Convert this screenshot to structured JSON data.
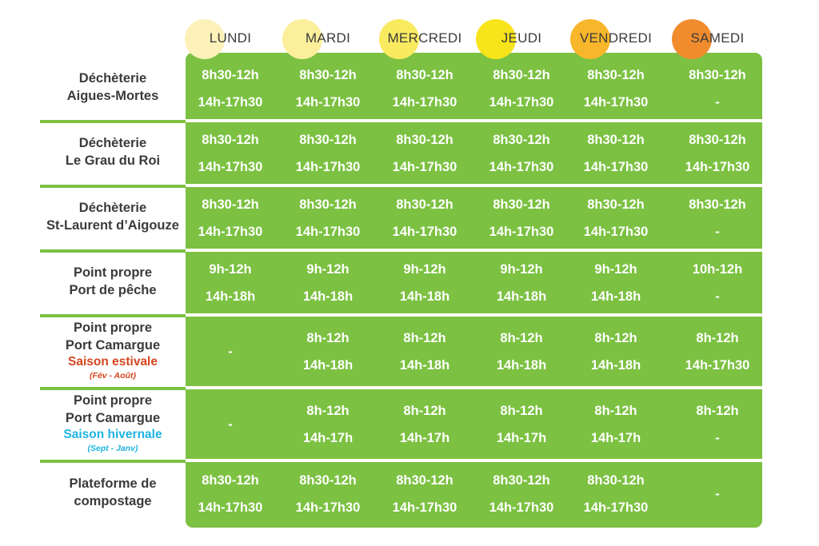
{
  "days": [
    {
      "label": "LUNDI",
      "color": "#fbf1b9"
    },
    {
      "label": "MARDI",
      "color": "#fbef9c"
    },
    {
      "label": "MERCREDI",
      "color": "#f9ea60"
    },
    {
      "label": "JEUDI",
      "color": "#f7e41a"
    },
    {
      "label": "VENDREDI",
      "color": "#f8b62a"
    },
    {
      "label": "SAMEDI",
      "color": "#f08c2e"
    }
  ],
  "colors": {
    "green": "#7cc142",
    "estivale": "#d4451f",
    "hivernale": "#1eb4e0",
    "text": "#3b3b3b"
  },
  "sites": [
    {
      "name": [
        "Déchèterie",
        "Aigues-Mortes"
      ],
      "hours": [
        [
          "8h30-12h",
          "14h-17h30"
        ],
        [
          "8h30-12h",
          "14h-17h30"
        ],
        [
          "8h30-12h",
          "14h-17h30"
        ],
        [
          "8h30-12h",
          "14h-17h30"
        ],
        [
          "8h30-12h",
          "14h-17h30"
        ],
        [
          "8h30-12h",
          "-"
        ]
      ]
    },
    {
      "name": [
        "Déchèterie",
        "Le Grau du Roi"
      ],
      "hours": [
        [
          "8h30-12h",
          "14h-17h30"
        ],
        [
          "8h30-12h",
          "14h-17h30"
        ],
        [
          "8h30-12h",
          "14h-17h30"
        ],
        [
          "8h30-12h",
          "14h-17h30"
        ],
        [
          "8h30-12h",
          "14h-17h30"
        ],
        [
          "8h30-12h",
          "14h-17h30"
        ]
      ]
    },
    {
      "name": [
        "Déchèterie",
        "St-Laurent d’Aigouze"
      ],
      "hours": [
        [
          "8h30-12h",
          "14h-17h30"
        ],
        [
          "8h30-12h",
          "14h-17h30"
        ],
        [
          "8h30-12h",
          "14h-17h30"
        ],
        [
          "8h30-12h",
          "14h-17h30"
        ],
        [
          "8h30-12h",
          "14h-17h30"
        ],
        [
          "8h30-12h",
          "-"
        ]
      ]
    },
    {
      "name": [
        "Point propre",
        "Port de pêche"
      ],
      "hours": [
        [
          "9h-12h",
          "14h-18h"
        ],
        [
          "9h-12h",
          "14h-18h"
        ],
        [
          "9h-12h",
          "14h-18h"
        ],
        [
          "9h-12h",
          "14h-18h"
        ],
        [
          "9h-12h",
          "14h-18h"
        ],
        [
          "10h-12h",
          "-"
        ]
      ]
    },
    {
      "name": [
        "Point propre",
        "Port Camargue"
      ],
      "season": "Saison estivale",
      "season_color": "estivale",
      "period": "(Fév - Août)",
      "hours": [
        [
          "-"
        ],
        [
          "8h-12h",
          "14h-18h"
        ],
        [
          "8h-12h",
          "14h-18h"
        ],
        [
          "8h-12h",
          "14h-18h"
        ],
        [
          "8h-12h",
          "14h-18h"
        ],
        [
          "8h-12h",
          "14h-17h30"
        ]
      ]
    },
    {
      "name": [
        "Point propre",
        "Port Camargue"
      ],
      "season": "Saison hivernale",
      "season_color": "hivernale",
      "period": "(Sept - Janv)",
      "hours": [
        [
          "-"
        ],
        [
          "8h-12h",
          "14h-17h"
        ],
        [
          "8h-12h",
          "14h-17h"
        ],
        [
          "8h-12h",
          "14h-17h"
        ],
        [
          "8h-12h",
          "14h-17h"
        ],
        [
          "8h-12h",
          "-"
        ]
      ]
    },
    {
      "name": [
        "Plateforme de",
        "compostage"
      ],
      "hours": [
        [
          "8h30-12h",
          "14h-17h30"
        ],
        [
          "8h30-12h",
          "14h-17h30"
        ],
        [
          "8h30-12h",
          "14h-17h30"
        ],
        [
          "8h30-12h",
          "14h-17h30"
        ],
        [
          "8h30-12h",
          "14h-17h30"
        ],
        [
          "-"
        ]
      ]
    }
  ]
}
